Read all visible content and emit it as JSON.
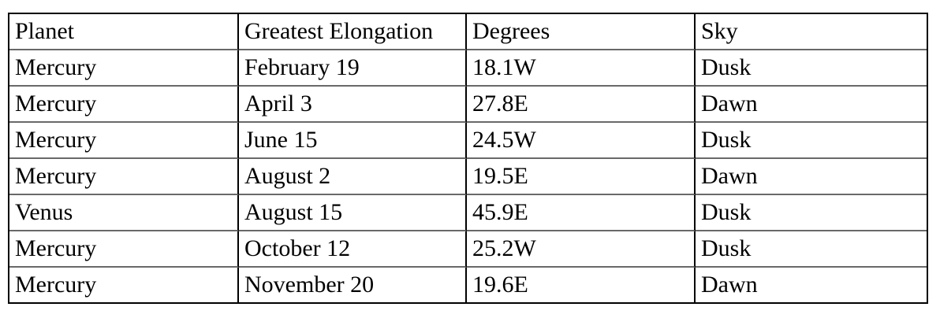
{
  "table": {
    "columns": [
      "Planet",
      "Greatest Elongation",
      "Degrees",
      "Sky"
    ],
    "rows": [
      [
        "Mercury",
        "February 19",
        "18.1W",
        "Dusk"
      ],
      [
        "Mercury",
        "April 3",
        "27.8E",
        "Dawn"
      ],
      [
        "Mercury",
        "June 15",
        "24.5W",
        "Dusk"
      ],
      [
        "Mercury",
        "August 2",
        "19.5E",
        "Dawn"
      ],
      [
        "Venus",
        "August 15",
        "45.9E",
        "Dusk"
      ],
      [
        "Mercury",
        "October 12",
        "25.2W",
        "Dusk"
      ],
      [
        "Mercury",
        "November 20",
        "19.6E",
        "Dawn"
      ]
    ],
    "colors": {
      "outer_border": "#000000",
      "vertical_border": "#000000",
      "horizontal_border": "#696969",
      "text": "#000000",
      "table_background": "#ffffff",
      "page_background": "#ffffff"
    }
  }
}
